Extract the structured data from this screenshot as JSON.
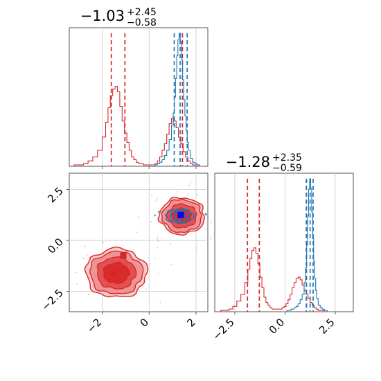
{
  "colors": {
    "red": "#d62728",
    "blue": "#1f77b4",
    "red_fill": "#ef9a9b",
    "blue_fill": "#aec7e8",
    "grid": "#c8c8c8",
    "axes": "#444444"
  },
  "titles": {
    "x": {
      "main": "−1.03",
      "sup": "+2.45",
      "sub": "−0.58"
    },
    "y": {
      "main": "−1.28",
      "sup": "+2.35",
      "sub": "−0.59"
    }
  },
  "chart_data": [
    {
      "panel": "top-left",
      "type": "area",
      "xlim": [
        -3.4,
        2.5
      ],
      "x_ticks": [
        -2,
        0,
        2
      ],
      "tick_labels_shown": false,
      "grid": true,
      "series": [
        {
          "color": "#d62728",
          "x": [
            -3.1,
            -2.9,
            -2.7,
            -2.5,
            -2.3,
            -2.1,
            -1.9,
            -1.8,
            -1.7,
            -1.6,
            -1.5,
            -1.4,
            -1.3,
            -1.2,
            -1.1,
            -1.0,
            -0.9,
            -0.8,
            -0.7,
            -0.6,
            -0.5,
            -0.4,
            -0.3,
            -0.2,
            -0.1,
            0.0,
            0.1,
            0.2,
            0.3,
            0.4,
            0.5,
            0.6,
            0.7,
            0.8,
            0.9,
            1.0,
            1.1,
            1.2,
            1.3,
            1.4,
            1.5,
            1.6,
            1.7,
            1.8,
            1.9,
            2.0,
            2.1,
            2.2,
            2.3
          ],
          "values": [
            0.01,
            0.01,
            0.02,
            0.04,
            0.07,
            0.12,
            0.22,
            0.33,
            0.44,
            0.53,
            0.58,
            0.6,
            0.56,
            0.45,
            0.34,
            0.25,
            0.18,
            0.12,
            0.07,
            0.05,
            0.03,
            0.02,
            0.02,
            0.01,
            0.01,
            0.01,
            0.01,
            0.01,
            0.02,
            0.04,
            0.07,
            0.12,
            0.17,
            0.24,
            0.32,
            0.36,
            0.34,
            0.29,
            0.22,
            0.17,
            0.11,
            0.07,
            0.04,
            0.02,
            0.01,
            0.01,
            0.01,
            0.0,
            0.0
          ],
          "median_and_interval": [
            -1.03,
            -1.61,
            1.42
          ]
        },
        {
          "color": "#1f77b4",
          "x": [
            0.3,
            0.4,
            0.5,
            0.6,
            0.7,
            0.8,
            0.9,
            1.0,
            1.05,
            1.1,
            1.15,
            1.2,
            1.25,
            1.3,
            1.35,
            1.4,
            1.45,
            1.5,
            1.55,
            1.6,
            1.65,
            1.7,
            1.8,
            1.9,
            2.0,
            2.1,
            2.2
          ],
          "values": [
            0.01,
            0.02,
            0.03,
            0.05,
            0.08,
            0.12,
            0.2,
            0.31,
            0.4,
            0.52,
            0.66,
            0.83,
            0.95,
            1.0,
            0.94,
            0.8,
            0.65,
            0.5,
            0.38,
            0.27,
            0.18,
            0.12,
            0.06,
            0.03,
            0.02,
            0.01,
            0.0
          ],
          "median_and_interval": [
            1.32,
            1.07,
            1.62
          ]
        }
      ]
    },
    {
      "panel": "bottom-left",
      "type": "scatter",
      "xlim": [
        -3.4,
        2.5
      ],
      "ylim": [
        -3.5,
        3.3
      ],
      "x_ticks": [
        -2,
        0,
        2
      ],
      "x_tick_labels": [
        "−2",
        "0",
        "2"
      ],
      "y_ticks": [
        -2.5,
        0.0,
        2.5
      ],
      "y_tick_labels": [
        "−2.5",
        "0.0",
        "2.5"
      ],
      "grid": true,
      "contours": [
        {
          "color": "#d62728",
          "center": [
            -1.4,
            -1.6
          ],
          "radii": [
            [
              0.55,
              0.5
            ],
            [
              0.82,
              0.78
            ],
            [
              1.12,
              1.04
            ],
            [
              1.3,
              1.2
            ]
          ]
        },
        {
          "color": "#d62728",
          "center": [
            1.4,
            1.2
          ],
          "radii": [
            [
              0.4,
              0.37
            ],
            [
              0.62,
              0.58
            ],
            [
              0.84,
              0.8
            ],
            [
              0.96,
              0.9
            ]
          ]
        },
        {
          "color": "#1f77b4",
          "center": [
            1.3,
            1.2
          ],
          "radii": [
            [
              0.22,
              0.16
            ],
            [
              0.4,
              0.26
            ],
            [
              0.6,
              0.34
            ]
          ]
        }
      ],
      "markers": [
        {
          "color": "#d62728",
          "x": -1.1,
          "y": -0.75
        },
        {
          "color": "#d62728",
          "x": -1.5,
          "y": -1.6
        },
        {
          "color": "#d62728",
          "x": 1.35,
          "y": 1.2
        },
        {
          "color": "#0000ff",
          "x": 1.35,
          "y": 1.25
        }
      ]
    },
    {
      "panel": "bottom-right",
      "type": "area",
      "xlim": [
        -3.5,
        3.4
      ],
      "x_ticks": [
        -2.5,
        0.0,
        2.5
      ],
      "x_tick_labels": [
        "−2.5",
        "0.0",
        "2.5"
      ],
      "grid": true,
      "series": [
        {
          "color": "#d62728",
          "x": [
            -3.1,
            -2.9,
            -2.7,
            -2.5,
            -2.3,
            -2.1,
            -1.9,
            -1.8,
            -1.7,
            -1.6,
            -1.5,
            -1.4,
            -1.3,
            -1.2,
            -1.1,
            -1.0,
            -0.9,
            -0.8,
            -0.7,
            -0.6,
            -0.5,
            -0.4,
            -0.3,
            -0.2,
            -0.1,
            0.0,
            0.1,
            0.2,
            0.3,
            0.4,
            0.5,
            0.6,
            0.7,
            0.8,
            0.9,
            1.0,
            1.1,
            1.2,
            1.3,
            1.4,
            1.5,
            1.6,
            1.7,
            1.8,
            1.9,
            2.0,
            2.1,
            2.2,
            2.3
          ],
          "values": [
            0.01,
            0.01,
            0.02,
            0.04,
            0.08,
            0.13,
            0.22,
            0.32,
            0.4,
            0.46,
            0.48,
            0.44,
            0.36,
            0.26,
            0.18,
            0.11,
            0.07,
            0.05,
            0.03,
            0.02,
            0.02,
            0.02,
            0.02,
            0.02,
            0.03,
            0.04,
            0.06,
            0.09,
            0.13,
            0.18,
            0.22,
            0.25,
            0.26,
            0.24,
            0.2,
            0.16,
            0.13,
            0.1,
            0.07,
            0.05,
            0.03,
            0.02,
            0.01,
            0.01,
            0.01,
            0.0,
            0.0,
            0.0,
            0.0
          ],
          "median_and_interval": [
            -1.28,
            -1.87,
            1.07
          ]
        },
        {
          "color": "#1f77b4",
          "x": [
            0.2,
            0.4,
            0.5,
            0.6,
            0.7,
            0.8,
            0.9,
            1.0,
            1.05,
            1.1,
            1.15,
            1.2,
            1.25,
            1.3,
            1.35,
            1.4,
            1.45,
            1.5,
            1.55,
            1.6,
            1.7,
            1.8,
            1.9,
            2.0,
            2.2
          ],
          "values": [
            0.01,
            0.02,
            0.03,
            0.04,
            0.06,
            0.09,
            0.13,
            0.22,
            0.33,
            0.5,
            0.72,
            0.92,
            1.0,
            0.93,
            0.75,
            0.55,
            0.38,
            0.25,
            0.16,
            0.1,
            0.05,
            0.03,
            0.02,
            0.01,
            0.0
          ],
          "median_and_interval": [
            1.25,
            1.06,
            1.4
          ]
        }
      ]
    }
  ]
}
